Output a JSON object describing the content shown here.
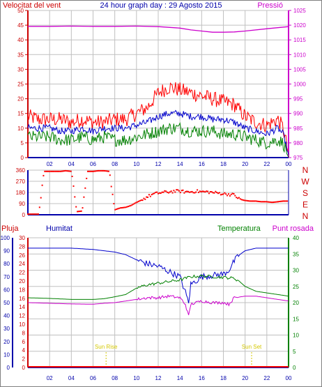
{
  "chart_data": [
    {
      "type": "line",
      "title": "24 hour graph day : 29 Agosto 2015",
      "left_label": "Velocitat del vent",
      "right_label": "Pressió",
      "x_ticks": [
        "02",
        "04",
        "06",
        "08",
        "10",
        "12",
        "14",
        "16",
        "18",
        "20",
        "22",
        "00"
      ],
      "left_ticks": [
        "0",
        "5",
        "10",
        "15",
        "20",
        "25",
        "30",
        "35",
        "40",
        "45",
        "50"
      ],
      "right_ticks": [
        "975",
        "980",
        "985",
        "990",
        "995",
        "1000",
        "1005",
        "1010",
        "1015",
        "1020",
        "1025"
      ],
      "ylim_left": [
        0,
        50
      ],
      "ylim_right": [
        975,
        1025
      ],
      "x_range_hours": [
        0,
        24
      ],
      "grid": true,
      "colors": {
        "gust": "#ff0000",
        "wind": "#0000cc",
        "windmin": "#008000",
        "pressure": "#cc00cc",
        "grid": "#c0c0c0"
      },
      "series": [
        {
          "key": "gust",
          "x": [
            0,
            1,
            2,
            3,
            4,
            5,
            6,
            7,
            8,
            9,
            10,
            11,
            12,
            13,
            14,
            15,
            16,
            17,
            18,
            19,
            20,
            21,
            22,
            23,
            23.5,
            24
          ],
          "values": [
            14,
            13,
            13,
            13,
            12,
            13,
            12,
            12,
            13,
            13,
            15,
            17,
            22,
            24,
            23,
            22,
            21,
            20,
            19,
            18,
            14,
            12,
            11,
            13,
            10,
            1
          ]
        },
        {
          "key": "wind",
          "x": [
            0,
            1,
            2,
            3,
            4,
            5,
            6,
            7,
            8,
            9,
            10,
            11,
            12,
            13,
            14,
            15,
            16,
            17,
            18,
            19,
            20,
            21,
            22,
            23,
            23.5,
            24
          ],
          "values": [
            10,
            10,
            10,
            9,
            9,
            10,
            9,
            10,
            10,
            10,
            11,
            12,
            14,
            15,
            15,
            14,
            14,
            13,
            13,
            12,
            10,
            9,
            8,
            10,
            8,
            1
          ]
        },
        {
          "key": "windmin",
          "x": [
            0,
            1,
            2,
            3,
            4,
            5,
            6,
            7,
            8,
            9,
            10,
            11,
            12,
            13,
            14,
            15,
            16,
            17,
            18,
            19,
            20,
            21,
            22,
            23,
            23.5,
            24
          ],
          "values": [
            7,
            7,
            7,
            6,
            6,
            7,
            6,
            7,
            6,
            6,
            7,
            8,
            9,
            10,
            10,
            9,
            9,
            9,
            8,
            8,
            7,
            6,
            5,
            6,
            5,
            0
          ]
        },
        {
          "key": "pressure",
          "x": [
            0,
            2,
            4,
            6,
            8,
            10,
            12,
            14,
            15,
            16,
            17,
            18,
            19,
            20,
            22,
            24
          ],
          "values": [
            1019.6,
            1019.6,
            1019.7,
            1019.6,
            1019.6,
            1019.7,
            1019.5,
            1019.0,
            1018.4,
            1018.0,
            1017.6,
            1017.6,
            1017.7,
            1018.0,
            1018.8,
            1019.5
          ]
        }
      ]
    },
    {
      "type": "scatter",
      "x_ticks": [
        "02",
        "04",
        "06",
        "08",
        "10",
        "12",
        "14",
        "16",
        "18",
        "20",
        "22",
        "00"
      ],
      "left_ticks": [
        "0",
        "90",
        "180",
        "270",
        "360"
      ],
      "right_labels": [
        "N",
        "W",
        "S",
        "E",
        "N"
      ],
      "ylim": [
        0,
        360
      ],
      "color": "#ff0000",
      "series": [
        {
          "key": "direction",
          "x": [
            0,
            0.5,
            1,
            1.5,
            2,
            2.5,
            3,
            3.5,
            4,
            4.5,
            5,
            5.5,
            6,
            6.5,
            7,
            7.5,
            8,
            8.5,
            9,
            9.5,
            10,
            10.5,
            11,
            11.5,
            12,
            12.5,
            13,
            13.5,
            14,
            14.5,
            15,
            15.5,
            16,
            16.5,
            17,
            17.5,
            18,
            18.5,
            19,
            19.5,
            20,
            20.5,
            21,
            21.5,
            22,
            22.5,
            23,
            23.5,
            24
          ],
          "values": [
            5,
            5,
            5,
            350,
            350,
            350,
            350,
            355,
            350,
            25,
            30,
            350,
            350,
            355,
            355,
            350,
            40,
            55,
            60,
            75,
            100,
            120,
            145,
            165,
            175,
            180,
            185,
            190,
            190,
            185,
            185,
            190,
            185,
            185,
            180,
            175,
            170,
            165,
            160,
            125,
            115,
            110,
            110,
            105,
            105,
            100,
            105,
            110,
            110
          ]
        }
      ]
    },
    {
      "type": "line",
      "rain_label": "Pluja",
      "humidity_label": "Humitat",
      "temp_label": "Temperatura",
      "dew_label": "Punt rosada",
      "sunrise_label": "Sun Rise",
      "sunset_label": "Sun Set",
      "sunrise_hour": 7.2,
      "sunset_hour": 20.6,
      "x_ticks": [
        "02",
        "04",
        "06",
        "08",
        "10",
        "12",
        "14",
        "16",
        "18",
        "20",
        "22",
        "00"
      ],
      "humidity_ticks": [
        "0",
        "10",
        "20",
        "30",
        "40",
        "50",
        "60",
        "70",
        "80",
        "90",
        "100"
      ],
      "rain_ticks": [
        "0",
        "2",
        "4",
        "6",
        "8",
        "10",
        "12",
        "14",
        "16",
        "18",
        "20",
        "22",
        "24",
        "26",
        "28",
        "30"
      ],
      "temp_ticks": [
        "0",
        "5",
        "10",
        "15",
        "20",
        "25",
        "30",
        "35",
        "40"
      ],
      "ylim_humidity": [
        0,
        100
      ],
      "ylim_rain": [
        0,
        30
      ],
      "ylim_temp": [
        0,
        40
      ],
      "grid": true,
      "colors": {
        "humidity": "#0000cc",
        "temp": "#008000",
        "dew": "#cc00cc",
        "rain": "#ff0000",
        "sun": "#d4c800"
      },
      "series": [
        {
          "key": "humidity",
          "x": [
            0,
            2,
            4,
            6,
            7,
            8,
            9,
            10,
            11,
            12,
            13,
            14,
            14.5,
            14.8,
            15,
            16,
            17,
            18,
            18.5,
            19,
            19.5,
            20,
            21,
            22,
            23,
            24
          ],
          "values": [
            92,
            92,
            92,
            91,
            90,
            89,
            87,
            83,
            80,
            78,
            74,
            70,
            58,
            50,
            64,
            70,
            71,
            72,
            75,
            82,
            87,
            90,
            92,
            92,
            92,
            92
          ]
        },
        {
          "key": "temp",
          "x": [
            0,
            2,
            4,
            6,
            7,
            8,
            9,
            10,
            11,
            12,
            13,
            14,
            15,
            16,
            17,
            18,
            19,
            19.5,
            20,
            21,
            22,
            23,
            24
          ],
          "values": [
            21.5,
            21.3,
            21.0,
            21.0,
            21.2,
            21.8,
            22.5,
            24.5,
            25.5,
            26.0,
            26.5,
            27.0,
            28.0,
            28.2,
            28.0,
            27.8,
            27.5,
            26.5,
            25.0,
            23.5,
            23.0,
            22.5,
            22.0
          ]
        },
        {
          "key": "dew",
          "x": [
            0,
            2,
            4,
            6,
            7,
            8,
            9,
            10,
            11,
            12,
            13,
            14,
            14.5,
            14.8,
            15,
            16,
            17,
            18,
            18.5,
            19,
            20,
            21,
            22,
            23,
            24
          ],
          "values": [
            20.0,
            19.8,
            19.6,
            19.5,
            19.8,
            20.0,
            20.5,
            21.0,
            21.5,
            21.5,
            22.0,
            21.5,
            19.5,
            15.8,
            19.5,
            20.5,
            20.0,
            20.0,
            19.5,
            21.5,
            22.0,
            22.0,
            21.5,
            21.0,
            20.5
          ]
        },
        {
          "key": "rain",
          "x": [
            0,
            24
          ],
          "values": [
            0,
            0
          ]
        }
      ]
    }
  ]
}
